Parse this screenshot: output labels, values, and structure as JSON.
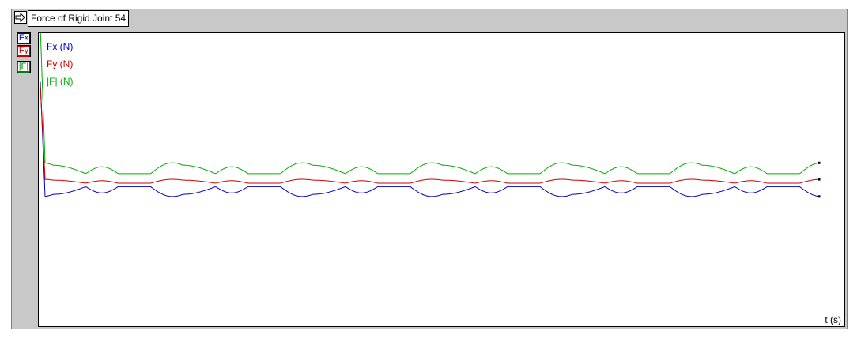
{
  "window": {
    "title": "Force of Rigid Joint 54"
  },
  "toolbar": {
    "arrow_icon": "right-arrow-icon"
  },
  "series_buttons": [
    {
      "label": "Fx",
      "color": "#0000cc"
    },
    {
      "label": "Fy",
      "color": "#cc0000"
    },
    {
      "label": "|F|",
      "color": "#008000"
    }
  ],
  "chart_data": {
    "type": "line",
    "title": "Force of Rigid Joint 54",
    "xlabel": "t (s)",
    "ylabel": "",
    "grid": false,
    "legend_placement": "top-left",
    "legend": [
      "Fx (N)",
      "Fy (N)",
      "|F| (N)"
    ],
    "cycles": 6,
    "initial_transient": true,
    "series": [
      {
        "name": "Fx (N)",
        "color": "#0000cc",
        "baseline": -0.2,
        "amplitude": 0.5,
        "pattern": "double-dip"
      },
      {
        "name": "Fy (N)",
        "color": "#cc0000",
        "baseline": 0.0,
        "amplitude": 0.2,
        "pattern": "double-bump"
      },
      {
        "name": "|F| (N)",
        "color": "#00b000",
        "baseline": 0.55,
        "amplitude": 0.55,
        "pattern": "double-bump"
      }
    ]
  }
}
